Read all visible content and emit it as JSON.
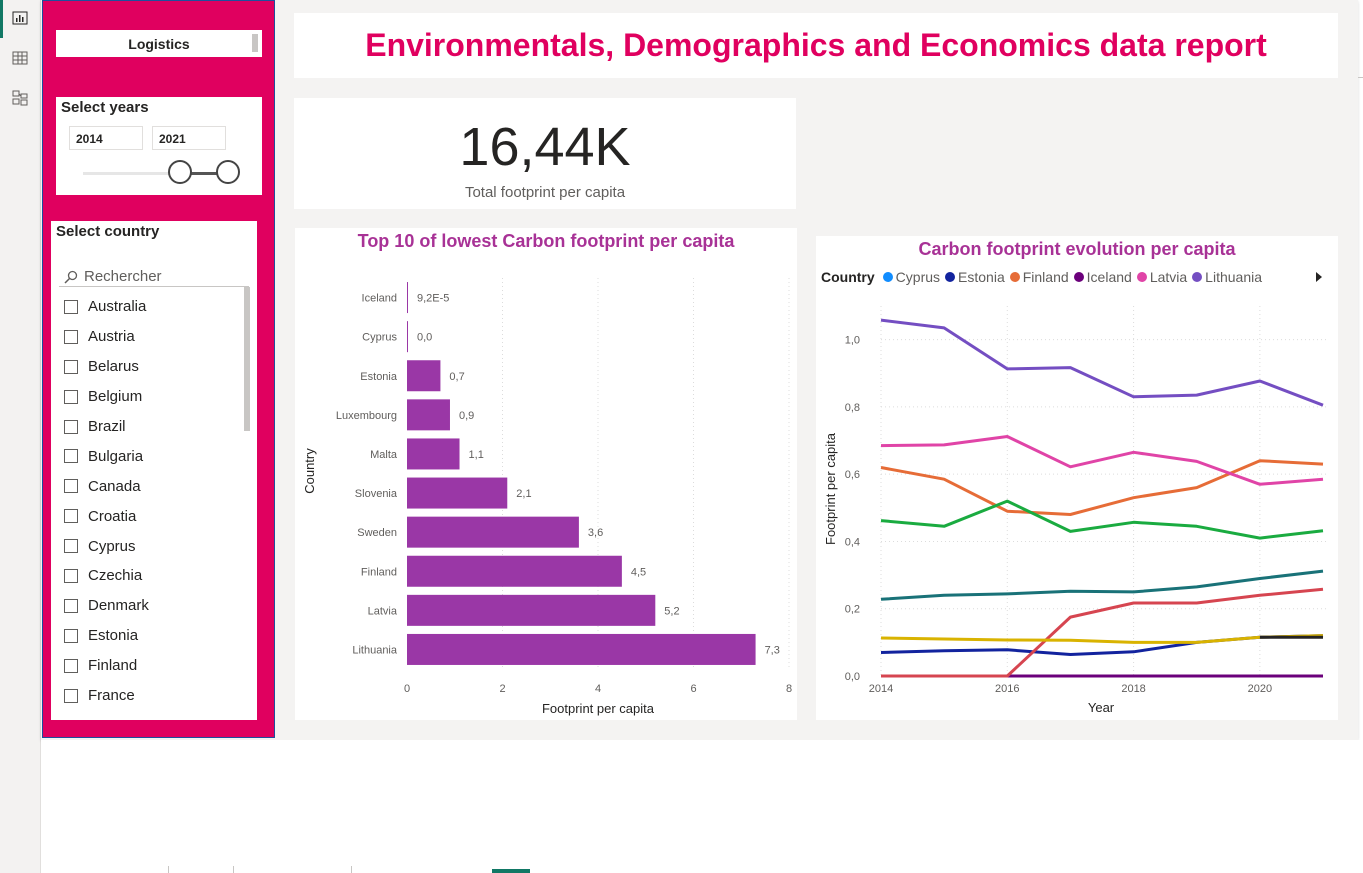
{
  "nav": {
    "icons": [
      "report-view-icon",
      "table-view-icon",
      "model-view-icon"
    ]
  },
  "slicers": {
    "logistics_label": "Logistics",
    "years": {
      "title": "Select years",
      "start": "2014",
      "end": "2021"
    },
    "country": {
      "title": "Select country",
      "search_placeholder": "Rechercher",
      "items": [
        "Australia",
        "Austria",
        "Belarus",
        "Belgium",
        "Brazil",
        "Bulgaria",
        "Canada",
        "Croatia",
        "Cyprus",
        "Czechia",
        "Denmark",
        "Estonia",
        "Finland",
        "France"
      ]
    }
  },
  "header": {
    "title": "Environmentals, Demographics and Economics data report"
  },
  "kpi": {
    "value": "16,44K",
    "label": "Total footprint per capita"
  },
  "colors": {
    "accent": "#e0005f",
    "chart_title": "#a83296",
    "bar": "#9a37a6"
  },
  "chart_data": [
    {
      "type": "bar",
      "title": "Top 10 of lowest Carbon footprint per capita",
      "xlabel": "Footprint per capita",
      "ylabel": "Country",
      "categories": [
        "Iceland",
        "Cyprus",
        "Estonia",
        "Luxembourg",
        "Malta",
        "Slovenia",
        "Sweden",
        "Finland",
        "Latvia",
        "Lithuania"
      ],
      "values": [
        9.2e-05,
        0.0,
        0.7,
        0.9,
        1.1,
        2.1,
        3.6,
        4.5,
        5.2,
        7.3
      ],
      "data_labels": [
        "9,2E-5",
        "0,0",
        "0,7",
        "0,9",
        "1,1",
        "2,1",
        "3,6",
        "4,5",
        "5,2",
        "7,3"
      ],
      "xlim": [
        0,
        8
      ],
      "xticks": [
        "0",
        "2",
        "4",
        "6",
        "8"
      ]
    },
    {
      "type": "line",
      "title": "Carbon footprint evolution per capita",
      "legend_title": "Country",
      "xlabel": "Year",
      "ylabel": "Footprint per capita",
      "x": [
        2014,
        2015,
        2016,
        2017,
        2018,
        2019,
        2020,
        2021
      ],
      "xticks": [
        "2014",
        "2016",
        "2018",
        "2020"
      ],
      "ylim": [
        0,
        1.1
      ],
      "yticks": [
        "0,0",
        "0,2",
        "0,4",
        "0,6",
        "0,8",
        "1,0"
      ],
      "series": [
        {
          "name": "Cyprus",
          "color": "#118dff",
          "values": [
            0,
            0,
            0,
            0,
            0,
            0,
            0,
            0
          ]
        },
        {
          "name": "Estonia",
          "color": "#12239e",
          "values": [
            0.07,
            0.075,
            0.078,
            0.064,
            0.072,
            0.1,
            0.115,
            0.12
          ]
        },
        {
          "name": "Finland",
          "color": "#e66c37",
          "values": [
            0.62,
            0.585,
            0.49,
            0.48,
            0.53,
            0.56,
            0.64,
            0.63
          ]
        },
        {
          "name": "Iceland",
          "color": "#6b007b",
          "values": [
            0,
            0,
            0,
            0,
            0,
            0,
            0,
            0
          ]
        },
        {
          "name": "Latvia",
          "color": "#e044a7",
          "values": [
            0.685,
            0.687,
            0.712,
            0.622,
            0.665,
            0.638,
            0.57,
            0.585
          ]
        },
        {
          "name": "Lithuania",
          "color": "#744ec2",
          "values": [
            1.058,
            1.035,
            0.913,
            0.917,
            0.83,
            0.835,
            0.877,
            0.805
          ]
        },
        {
          "color": "#1aab40",
          "values": [
            0.462,
            0.445,
            0.52,
            0.43,
            0.457,
            0.445,
            0.41,
            0.432
          ]
        },
        {
          "color": "#197278",
          "values": [
            0.228,
            0.24,
            0.244,
            0.252,
            0.25,
            0.265,
            0.29,
            0.312
          ]
        },
        {
          "color": "#d64550",
          "values": [
            0,
            0,
            0,
            0.175,
            0.217,
            0.217,
            0.24,
            0.258
          ]
        },
        {
          "color": "#d9b300",
          "values": [
            0.113,
            0.11,
            0.107,
            0.106,
            0.1,
            0.1,
            0.115,
            0.12
          ]
        },
        {
          "color": "#252423",
          "values": [
            null,
            null,
            null,
            null,
            null,
            null,
            0.115,
            0.115
          ]
        }
      ]
    }
  ]
}
